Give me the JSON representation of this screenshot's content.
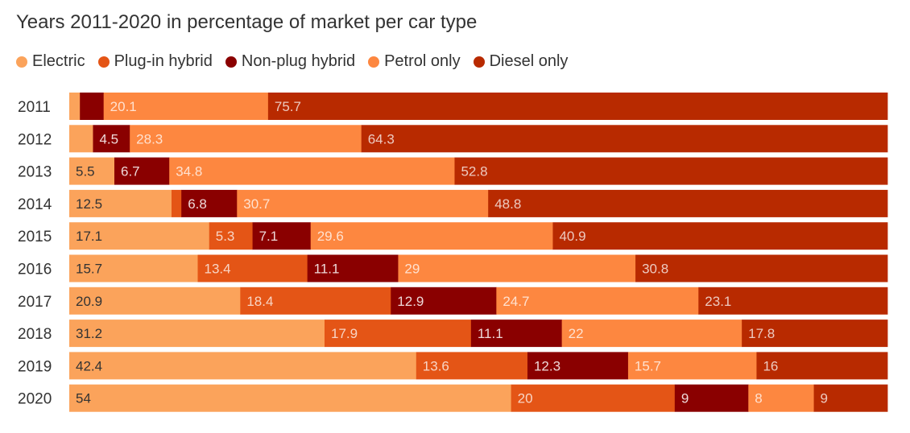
{
  "colors": {
    "electric": "#fba35b",
    "plugin": "#e45516",
    "nonplug": "#8a0000",
    "petrol": "#fd8740",
    "diesel": "#b82a00",
    "text": "#333333"
  },
  "chart_data": {
    "type": "bar",
    "orientation": "horizontal",
    "stacked": true,
    "title": "Years 2011-2020 in percentage of market per car type",
    "legend_position": "top-left",
    "categories": [
      "2011",
      "2012",
      "2013",
      "2014",
      "2015",
      "2016",
      "2017",
      "2018",
      "2019",
      "2020"
    ],
    "series": [
      {
        "name": "Electric",
        "key": "electric",
        "values": [
          1.3,
          2.9,
          5.5,
          12.5,
          17.1,
          15.7,
          20.9,
          31.2,
          42.4,
          54
        ]
      },
      {
        "name": "Plug-in hybrid",
        "key": "plugin",
        "values": [
          0,
          0,
          0,
          1.2,
          5.3,
          13.4,
          18.4,
          17.9,
          13.6,
          20
        ]
      },
      {
        "name": "Non-plug hybrid",
        "key": "nonplug",
        "values": [
          2.9,
          4.5,
          6.7,
          6.8,
          7.1,
          11.1,
          12.9,
          11.1,
          12.3,
          9
        ]
      },
      {
        "name": "Petrol only",
        "key": "petrol",
        "values": [
          20.1,
          28.3,
          34.8,
          30.7,
          29.6,
          29,
          24.7,
          22,
          15.7,
          8
        ]
      },
      {
        "name": "Diesel only",
        "key": "diesel",
        "values": [
          75.7,
          64.3,
          52.8,
          48.8,
          40.9,
          30.8,
          23.1,
          17.8,
          16,
          9
        ]
      }
    ],
    "labels": [
      [
        "",
        "",
        "",
        "20.1",
        "75.7"
      ],
      [
        "",
        "",
        "4.5",
        "28.3",
        "64.3"
      ],
      [
        "5.5",
        "",
        "6.7",
        "34.8",
        "52.8"
      ],
      [
        "12.5",
        "",
        "6.8",
        "30.7",
        "48.8"
      ],
      [
        "17.1",
        "5.3",
        "7.1",
        "29.6",
        "40.9"
      ],
      [
        "15.7",
        "13.4",
        "11.1",
        "29",
        "30.8"
      ],
      [
        "20.9",
        "18.4",
        "12.9",
        "24.7",
        "23.1"
      ],
      [
        "31.2",
        "17.9",
        "11.1",
        "22",
        "17.8"
      ],
      [
        "42.4",
        "13.6",
        "12.3",
        "15.7",
        "16"
      ],
      [
        "54",
        "20",
        "9",
        "8",
        "9"
      ]
    ]
  }
}
